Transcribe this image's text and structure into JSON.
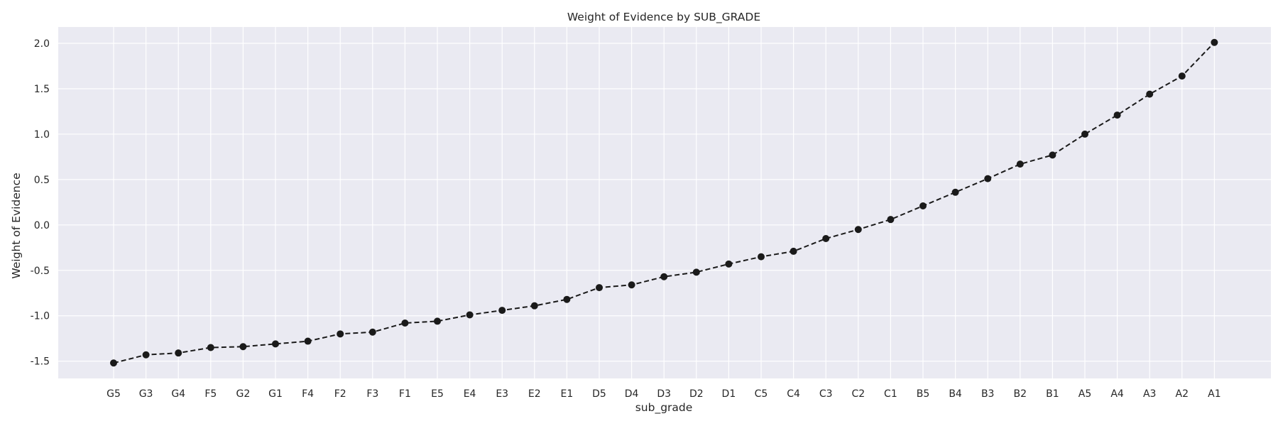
{
  "chart_data": {
    "type": "line",
    "title": "Weight of Evidence by SUB_GRADE",
    "xlabel": "sub_grade",
    "ylabel": "Weight of Evidence",
    "categories": [
      "G5",
      "G3",
      "G4",
      "F5",
      "G2",
      "G1",
      "F4",
      "F2",
      "F3",
      "F1",
      "E5",
      "E4",
      "E3",
      "E2",
      "E1",
      "D5",
      "D4",
      "D3",
      "D2",
      "D1",
      "C5",
      "C4",
      "C3",
      "C2",
      "C1",
      "B5",
      "B4",
      "B3",
      "B2",
      "B1",
      "A5",
      "A4",
      "A3",
      "A2",
      "A1"
    ],
    "series": [
      {
        "values": [
          -1.52,
          -1.43,
          -1.41,
          -1.35,
          -1.34,
          -1.31,
          -1.28,
          -1.2,
          -1.18,
          -1.08,
          -1.06,
          -0.99,
          -0.94,
          -0.89,
          -0.82,
          -0.69,
          -0.66,
          -0.57,
          -0.52,
          -0.43,
          -0.35,
          -0.29,
          -0.15,
          -0.05,
          0.06,
          0.21,
          0.36,
          0.51,
          0.67,
          0.77,
          1.0,
          1.21,
          1.44,
          1.64,
          2.01
        ],
        "color": "#1a1a1a",
        "line_style": "dashed",
        "marker": "circle"
      }
    ],
    "yticks": [
      -1.5,
      -1.0,
      -0.5,
      0.0,
      0.5,
      1.0,
      1.5,
      2.0
    ],
    "ylim": [
      -1.69,
      2.18
    ],
    "grid": true,
    "background": "#eaeaf2",
    "gridline_color": "#ffffff"
  }
}
